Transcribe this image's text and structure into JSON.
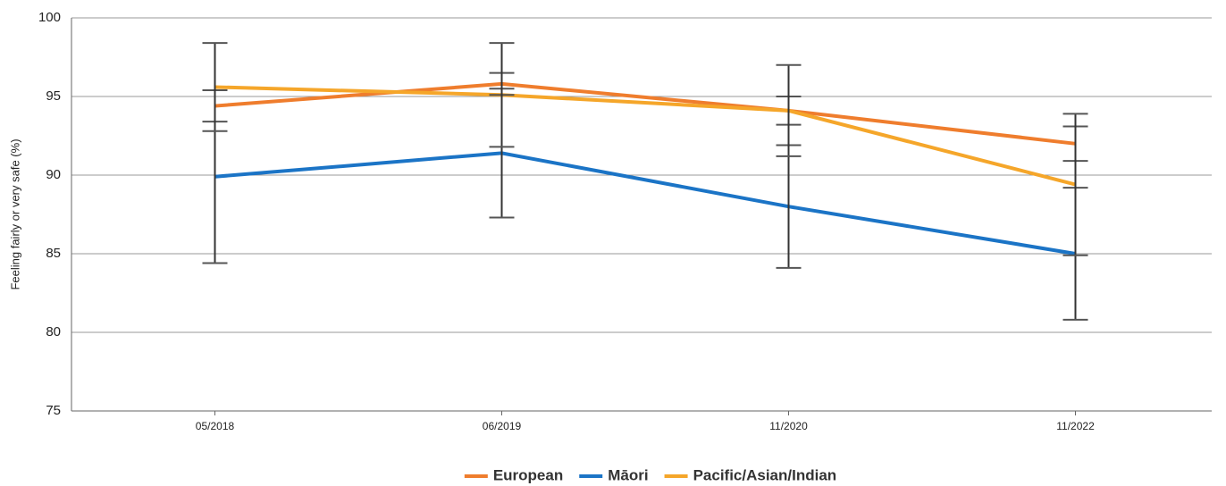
{
  "chart_data": {
    "type": "line",
    "y_label": "Feeling fairly or very safe (%)",
    "categories": [
      "05/2018",
      "06/2019",
      "11/2020",
      "11/2022"
    ],
    "series": [
      {
        "name": "European",
        "color": "#ef7d2d",
        "values": [
          94.4,
          95.8,
          94.1,
          92.0
        ],
        "errors": [
          1.0,
          0.7,
          0.9,
          1.1
        ]
      },
      {
        "name": "Māori",
        "color": "#1b74c6",
        "values": [
          89.9,
          91.4,
          88.0,
          85.0
        ],
        "errors": [
          5.5,
          4.1,
          3.9,
          4.2
        ]
      },
      {
        "name": "Pacific/Asian/Indian",
        "color": "#f5a62a",
        "values": [
          95.6,
          95.1,
          94.1,
          89.4
        ],
        "errors": [
          2.8,
          3.3,
          2.9,
          4.5
        ]
      }
    ],
    "ylim": [
      75,
      100
    ],
    "yticks": [
      75,
      80,
      85,
      90,
      95,
      100
    ],
    "grid": true,
    "legend": "bottom"
  }
}
